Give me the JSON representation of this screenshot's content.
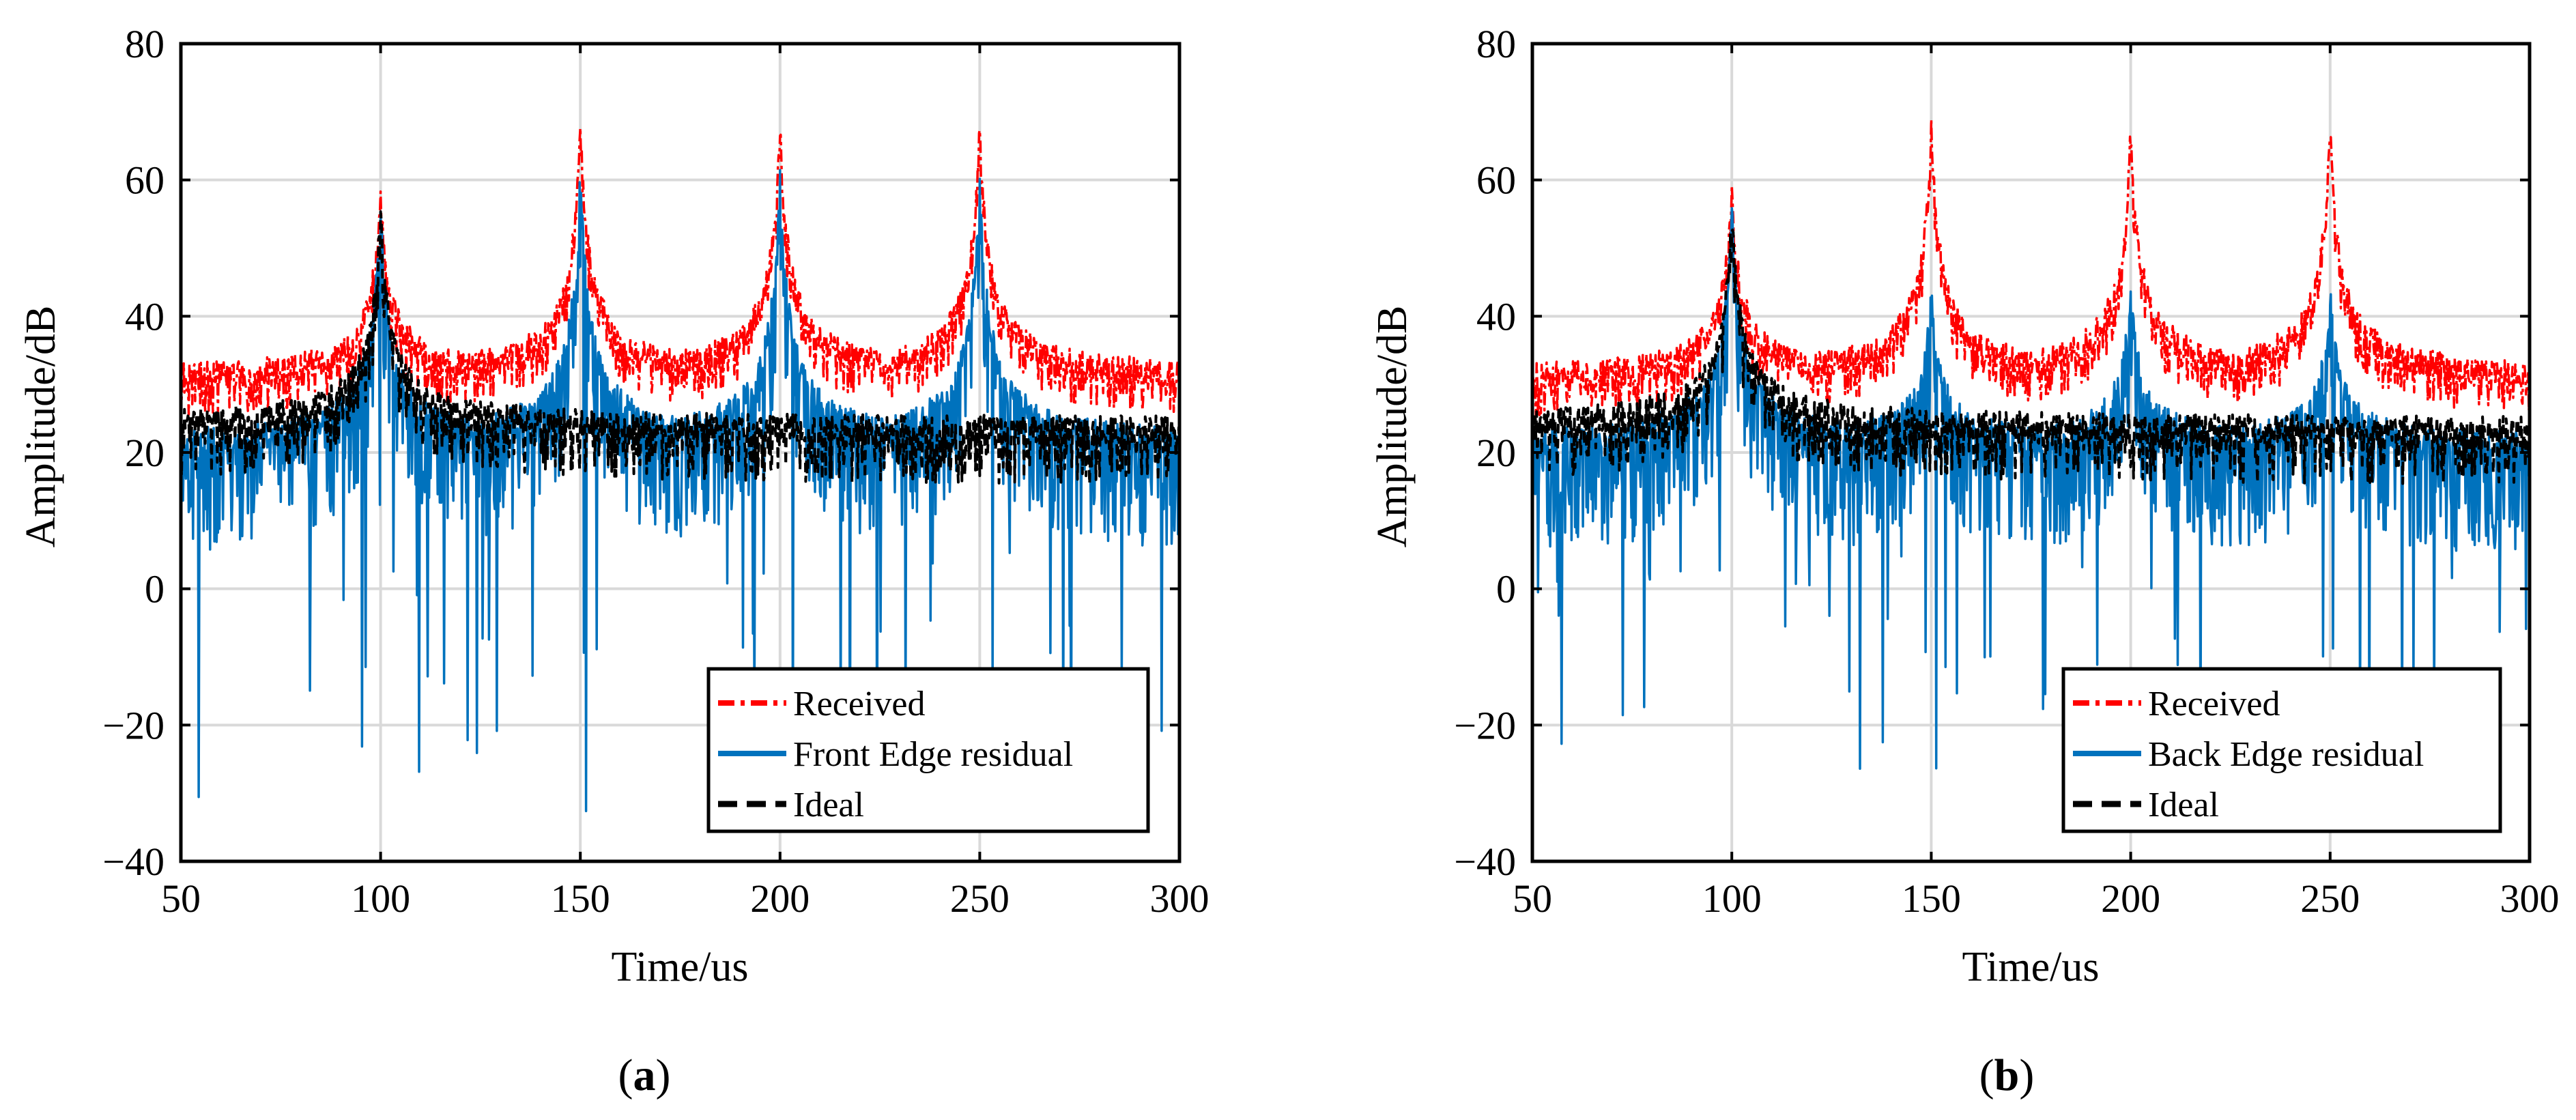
{
  "figure": {
    "panel_labels": [
      {
        "open": "(",
        "letter": "a",
        "close": ")"
      },
      {
        "open": "(",
        "letter": "b",
        "close": ")"
      }
    ]
  },
  "colors": {
    "received": "#ff0000",
    "residual": "#0072bd",
    "ideal": "#000000",
    "grid": "#d9d9d9"
  },
  "chart_data": [
    {
      "type": "line",
      "title": "",
      "xlabel": "Time/us",
      "ylabel": "Amplitude/dB",
      "xlim": [
        50,
        300
      ],
      "ylim": [
        -40,
        80
      ],
      "xticks": [
        50,
        100,
        150,
        200,
        250,
        300
      ],
      "yticks": [
        -40,
        -20,
        0,
        20,
        40,
        60,
        80
      ],
      "x_tick_labels": [
        "50",
        "100",
        "150",
        "200",
        "250",
        "300"
      ],
      "y_tick_labels": [
        "−40",
        "−20",
        "0",
        "20",
        "40",
        "60",
        "80"
      ],
      "grid": true,
      "legend_position": "bottom-right",
      "series": [
        {
          "name": "Received",
          "style": "dash-dot",
          "color": "#ff0000",
          "noise_floor": 32,
          "spread": 8,
          "peaks": [
            {
              "x": 100,
              "peak": 60
            },
            {
              "x": 150,
              "peak": 70
            },
            {
              "x": 200,
              "peak": 70
            },
            {
              "x": 250,
              "peak": 70
            }
          ]
        },
        {
          "name": "Front Edge residual",
          "style": "solid",
          "color": "#0072bd",
          "noise_floor": 22,
          "spread": 18,
          "min": -33,
          "peaks": [
            {
              "x": 100,
              "peak": 58
            },
            {
              "x": 150,
              "peak": 63
            },
            {
              "x": 200,
              "peak": 63
            },
            {
              "x": 250,
              "peak": 63
            }
          ]
        },
        {
          "name": "Ideal",
          "style": "dashed",
          "color": "#000000",
          "noise_floor": 25,
          "spread": 10,
          "peaks": [
            {
              "x": 100,
              "peak": 58
            }
          ]
        }
      ]
    },
    {
      "type": "line",
      "title": "",
      "xlabel": "Time/us",
      "ylabel": "Amplitude/dB",
      "xlim": [
        50,
        300
      ],
      "ylim": [
        -40,
        80
      ],
      "xticks": [
        50,
        100,
        150,
        200,
        250,
        300
      ],
      "yticks": [
        -40,
        -20,
        0,
        20,
        40,
        60,
        80
      ],
      "x_tick_labels": [
        "50",
        "100",
        "150",
        "200",
        "250",
        "300"
      ],
      "y_tick_labels": [
        "−40",
        "−20",
        "0",
        "20",
        "40",
        "60",
        "80"
      ],
      "grid": true,
      "legend_position": "bottom-right",
      "series": [
        {
          "name": "Received",
          "style": "dash-dot",
          "color": "#ff0000",
          "noise_floor": 32,
          "spread": 8,
          "peaks": [
            {
              "x": 100,
              "peak": 60
            },
            {
              "x": 150,
              "peak": 70
            },
            {
              "x": 200,
              "peak": 70
            },
            {
              "x": 250,
              "peak": 70
            }
          ]
        },
        {
          "name": "Back Edge residual",
          "style": "solid",
          "color": "#0072bd",
          "noise_floor": 22,
          "spread": 18,
          "min": -27,
          "peaks": [
            {
              "x": 100,
              "peak": 58
            },
            {
              "x": 150,
              "peak": 45
            },
            {
              "x": 200,
              "peak": 46
            },
            {
              "x": 250,
              "peak": 45
            }
          ]
        },
        {
          "name": "Ideal",
          "style": "dashed",
          "color": "#000000",
          "noise_floor": 25,
          "spread": 10,
          "peaks": [
            {
              "x": 100,
              "peak": 58
            }
          ]
        }
      ]
    }
  ]
}
